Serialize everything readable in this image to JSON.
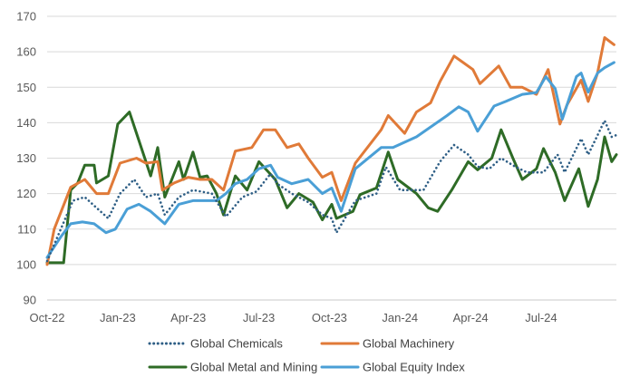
{
  "chart_data": {
    "type": "line",
    "title": "",
    "xlabel": "",
    "ylabel": "",
    "x_unit": "months since Oct-22",
    "xlim": [
      0,
      24.2
    ],
    "ylim": [
      90,
      170
    ],
    "yticks": [
      "90",
      "100",
      "110",
      "120",
      "130",
      "140",
      "150",
      "160",
      "170"
    ],
    "xticks": [
      {
        "label": "Oct-22",
        "x": 0
      },
      {
        "label": "Jan-23",
        "x": 3
      },
      {
        "label": "Apr-23",
        "x": 6
      },
      {
        "label": "Jul-23",
        "x": 9
      },
      {
        "label": "Oct-23",
        "x": 12
      },
      {
        "label": "Jan-24",
        "x": 15
      },
      {
        "label": "Apr-24",
        "x": 18
      },
      {
        "label": "Jul-24",
        "x": 21
      }
    ],
    "grid": "horizontal",
    "legend_position": "bottom",
    "series": [
      {
        "name": "Global Chemicals",
        "color": "#2F5F86",
        "style": "dotted",
        "points": [
          [
            0,
            101
          ],
          [
            1.1,
            118
          ],
          [
            1.6,
            119
          ],
          [
            2.1,
            116
          ],
          [
            2.6,
            113
          ],
          [
            3.1,
            120
          ],
          [
            3.7,
            124
          ],
          [
            4.2,
            119
          ],
          [
            4.7,
            120
          ],
          [
            5.0,
            114
          ],
          [
            5.6,
            119
          ],
          [
            6.2,
            121
          ],
          [
            7.0,
            120
          ],
          [
            7.6,
            113.5
          ],
          [
            8.3,
            119
          ],
          [
            8.9,
            120.6
          ],
          [
            9.5,
            125.6
          ],
          [
            9.8,
            122.7
          ],
          [
            10.4,
            120
          ],
          [
            11.1,
            117.6
          ],
          [
            11.7,
            114
          ],
          [
            12.1,
            113
          ],
          [
            12.3,
            109
          ],
          [
            13.1,
            118
          ],
          [
            14.0,
            120
          ],
          [
            14.4,
            127.5
          ],
          [
            15.0,
            121
          ],
          [
            16.0,
            121
          ],
          [
            16.7,
            129
          ],
          [
            17.3,
            133.7
          ],
          [
            17.9,
            131
          ],
          [
            18.3,
            127.6
          ],
          [
            18.8,
            127
          ],
          [
            19.3,
            130
          ],
          [
            19.9,
            127.6
          ],
          [
            20.4,
            126
          ],
          [
            21.1,
            126
          ],
          [
            21.7,
            131
          ],
          [
            22.0,
            126
          ],
          [
            22.7,
            135.5
          ],
          [
            23.0,
            131
          ],
          [
            23.7,
            140.6
          ],
          [
            24.0,
            136
          ],
          [
            24.2,
            136.5
          ]
        ]
      },
      {
        "name": "Global Machinery",
        "color": "#E07A38",
        "style": "solid",
        "points": [
          [
            0,
            100
          ],
          [
            0.3,
            110
          ],
          [
            1.0,
            121.8
          ],
          [
            1.6,
            124
          ],
          [
            2.1,
            120
          ],
          [
            2.6,
            120
          ],
          [
            3.1,
            128.6
          ],
          [
            3.8,
            130
          ],
          [
            4.2,
            128.6
          ],
          [
            4.7,
            129
          ],
          [
            4.9,
            121
          ],
          [
            5.4,
            123
          ],
          [
            6.0,
            124.6
          ],
          [
            6.5,
            124
          ],
          [
            7.0,
            124
          ],
          [
            7.5,
            121
          ],
          [
            8.0,
            132
          ],
          [
            8.7,
            133
          ],
          [
            9.2,
            138
          ],
          [
            9.7,
            138
          ],
          [
            10.2,
            133
          ],
          [
            10.7,
            134
          ],
          [
            11.1,
            130
          ],
          [
            11.7,
            124.6
          ],
          [
            12.1,
            126
          ],
          [
            12.5,
            118
          ],
          [
            13.1,
            128.6
          ],
          [
            14.2,
            138
          ],
          [
            14.5,
            142
          ],
          [
            15.2,
            137
          ],
          [
            15.7,
            143
          ],
          [
            16.3,
            145.6
          ],
          [
            16.7,
            151.6
          ],
          [
            17.3,
            158.8
          ],
          [
            18.1,
            155
          ],
          [
            18.4,
            151
          ],
          [
            19.2,
            156
          ],
          [
            19.7,
            150
          ],
          [
            20.2,
            150
          ],
          [
            20.8,
            148
          ],
          [
            21.3,
            155
          ],
          [
            21.8,
            139.6
          ],
          [
            22.1,
            145
          ],
          [
            22.7,
            152
          ],
          [
            23.0,
            146
          ],
          [
            23.4,
            154
          ],
          [
            23.7,
            164
          ],
          [
            24.1,
            162
          ]
        ]
      },
      {
        "name": "Global Metal and Mining",
        "color": "#2E6B26",
        "style": "solid",
        "points": [
          [
            0,
            100.5
          ],
          [
            0.7,
            100.5
          ],
          [
            1.0,
            121
          ],
          [
            1.3,
            123
          ],
          [
            1.6,
            128
          ],
          [
            2.0,
            128
          ],
          [
            2.1,
            123
          ],
          [
            2.6,
            125
          ],
          [
            3.0,
            139.6
          ],
          [
            3.5,
            143
          ],
          [
            3.9,
            135
          ],
          [
            4.4,
            125
          ],
          [
            4.7,
            133
          ],
          [
            5.0,
            119
          ],
          [
            5.6,
            129
          ],
          [
            5.8,
            124
          ],
          [
            6.2,
            131.7
          ],
          [
            6.5,
            124.6
          ],
          [
            6.8,
            125
          ],
          [
            7.2,
            120
          ],
          [
            7.5,
            114
          ],
          [
            8.0,
            125
          ],
          [
            8.5,
            121
          ],
          [
            9.0,
            129
          ],
          [
            9.7,
            124
          ],
          [
            10.2,
            116
          ],
          [
            10.7,
            120
          ],
          [
            11.3,
            117.6
          ],
          [
            11.7,
            112.6
          ],
          [
            12.1,
            117
          ],
          [
            12.3,
            113
          ],
          [
            13.0,
            115
          ],
          [
            13.3,
            119.7
          ],
          [
            14.0,
            121.6
          ],
          [
            14.5,
            131.7
          ],
          [
            14.9,
            124
          ],
          [
            15.7,
            120
          ],
          [
            16.2,
            116
          ],
          [
            16.6,
            115
          ],
          [
            17.2,
            121
          ],
          [
            17.9,
            129
          ],
          [
            18.3,
            126.7
          ],
          [
            18.9,
            130
          ],
          [
            19.3,
            138
          ],
          [
            19.8,
            130
          ],
          [
            20.2,
            124
          ],
          [
            20.8,
            127
          ],
          [
            21.1,
            132.7
          ],
          [
            21.6,
            126
          ],
          [
            22.0,
            118
          ],
          [
            22.6,
            127
          ],
          [
            23.0,
            116.4
          ],
          [
            23.4,
            124
          ],
          [
            23.7,
            136
          ],
          [
            24.0,
            129
          ],
          [
            24.2,
            131
          ]
        ]
      },
      {
        "name": "Global Equity Index",
        "color": "#4A9FD6",
        "style": "solid",
        "points": [
          [
            0,
            102
          ],
          [
            0.6,
            108
          ],
          [
            1.0,
            111.5
          ],
          [
            1.5,
            112
          ],
          [
            2.0,
            111.5
          ],
          [
            2.5,
            109
          ],
          [
            2.9,
            110
          ],
          [
            3.4,
            115.6
          ],
          [
            3.9,
            117
          ],
          [
            4.4,
            115
          ],
          [
            5.0,
            111.5
          ],
          [
            5.6,
            117
          ],
          [
            6.2,
            118
          ],
          [
            6.7,
            118
          ],
          [
            7.2,
            118
          ],
          [
            7.6,
            120
          ],
          [
            8.0,
            122.8
          ],
          [
            8.5,
            124
          ],
          [
            9.0,
            127
          ],
          [
            9.5,
            128
          ],
          [
            9.8,
            124.6
          ],
          [
            10.4,
            122.8
          ],
          [
            11.1,
            124
          ],
          [
            11.7,
            120
          ],
          [
            12.1,
            121.6
          ],
          [
            12.5,
            115
          ],
          [
            13.1,
            127
          ],
          [
            14.2,
            133
          ],
          [
            14.7,
            133
          ],
          [
            15.7,
            136
          ],
          [
            17.0,
            142
          ],
          [
            17.5,
            144.5
          ],
          [
            17.9,
            143
          ],
          [
            18.3,
            137.6
          ],
          [
            19.0,
            144.7
          ],
          [
            19.5,
            146
          ],
          [
            20.2,
            148
          ],
          [
            20.8,
            148.5
          ],
          [
            21.2,
            153
          ],
          [
            21.6,
            149.6
          ],
          [
            21.9,
            141
          ],
          [
            22.5,
            153
          ],
          [
            22.7,
            154
          ],
          [
            23.0,
            148.6
          ],
          [
            23.4,
            154
          ],
          [
            23.7,
            155.5
          ],
          [
            24.1,
            157
          ]
        ]
      }
    ]
  }
}
